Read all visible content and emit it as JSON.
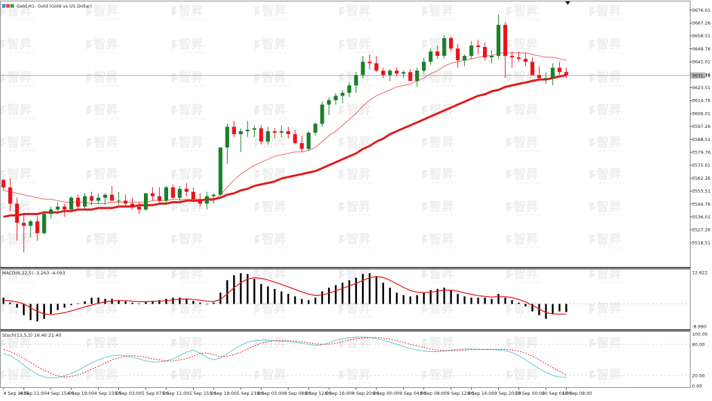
{
  "window": {
    "title": "Gold,H1: Gold (Gold vs US Dollar)"
  },
  "watermark": {
    "brand": "智昇",
    "sub": "ZHISHENG"
  },
  "colors": {
    "bull": "#1a7f2a",
    "bear": "#e8141c",
    "ma_fast": "#f06060",
    "ma_slow": "#e31818",
    "macd_signal": "#e31818",
    "stoch_main": "#5fc8d4",
    "stoch_signal": "#e8141c",
    "price_line": "#a0a0a0"
  },
  "chart_data": [
    {
      "type": "candlestick",
      "symbol": "Gold",
      "timeframe": "H1",
      "current_price": "3631.71",
      "ylim": [
        3505,
        3680
      ],
      "y_ticks": [
        "3676.01",
        "3667.26",
        "3658.51",
        "3649.76",
        "3641.01",
        "3632.26",
        "3623.51",
        "3614.76",
        "3606.01",
        "3597.26",
        "3588.51",
        "3579.76",
        "3571.01",
        "3562.26",
        "3553.51",
        "3544.76",
        "3536.01",
        "3527.26",
        "3518.51"
      ],
      "x_ticks": [
        "4 Sep 2025",
        "4 Sep 11:00",
        "4 Sep 15:00",
        "4 Sep 19:00",
        "4 Sep 23:00",
        "5 Sep 03:00",
        "5 Sep 07:00",
        "5 Sep 11:00",
        "5 Sep 15:00",
        "5 Sep 19:00",
        "5 Sep 23:00",
        "8 Sep 03:00",
        "8 Sep 08:00",
        "8 Sep 12:00",
        "8 Sep 16:00",
        "8 Sep 20:00",
        "9 Sep 00:00",
        "9 Sep 04:00",
        "9 Sep 08:00",
        "9 Sep 12:00",
        "9 Sep 16:00",
        "9 Sep 20:00",
        "10 Sep 00:00",
        "10 Sep 04:00",
        "10 Sep 08:00"
      ],
      "candles": [
        [
          3561,
          3562,
          3554,
          3556
        ],
        [
          3556,
          3562,
          3540,
          3545
        ],
        [
          3545,
          3549,
          3520,
          3532
        ],
        [
          3532,
          3538,
          3512,
          3530
        ],
        [
          3530,
          3534,
          3522,
          3533
        ],
        [
          3533,
          3537,
          3520,
          3525
        ],
        [
          3525,
          3540,
          3524,
          3538
        ],
        [
          3538,
          3543,
          3535,
          3541
        ],
        [
          3541,
          3546,
          3538,
          3543
        ],
        [
          3543,
          3545,
          3536,
          3541
        ],
        [
          3541,
          3550,
          3539,
          3549
        ],
        [
          3549,
          3551,
          3541,
          3543
        ],
        [
          3543,
          3552,
          3541,
          3550
        ],
        [
          3550,
          3553,
          3544,
          3547
        ],
        [
          3547,
          3552,
          3545,
          3549
        ],
        [
          3549,
          3552,
          3544,
          3551
        ],
        [
          3551,
          3557,
          3547,
          3547
        ],
        [
          3547,
          3553,
          3544,
          3547
        ],
        [
          3547,
          3551,
          3543,
          3545
        ],
        [
          3545,
          3549,
          3541,
          3543
        ],
        [
          3543,
          3546,
          3538,
          3541
        ],
        [
          3541,
          3552,
          3540,
          3552
        ],
        [
          3552,
          3556,
          3547,
          3550
        ],
        [
          3550,
          3556,
          3546,
          3547
        ],
        [
          3547,
          3557,
          3545,
          3556
        ],
        [
          3556,
          3558,
          3548,
          3549
        ],
        [
          3549,
          3557,
          3547,
          3555
        ],
        [
          3555,
          3559,
          3550,
          3553
        ],
        [
          3553,
          3556,
          3546,
          3548
        ],
        [
          3548,
          3552,
          3543,
          3545
        ],
        [
          3545,
          3553,
          3541,
          3550
        ],
        [
          3550,
          3552,
          3545,
          3551
        ],
        [
          3551,
          3583,
          3550,
          3583
        ],
        [
          3583,
          3599,
          3572,
          3597
        ],
        [
          3597,
          3601,
          3590,
          3592
        ],
        [
          3592,
          3596,
          3580,
          3594
        ],
        [
          3594,
          3601,
          3590,
          3595
        ],
        [
          3595,
          3598,
          3590,
          3596
        ],
        [
          3596,
          3598,
          3585,
          3587
        ],
        [
          3587,
          3597,
          3585,
          3594
        ],
        [
          3594,
          3596,
          3589,
          3593
        ],
        [
          3593,
          3598,
          3590,
          3594
        ],
        [
          3594,
          3597,
          3589,
          3592
        ],
        [
          3592,
          3595,
          3585,
          3586
        ],
        [
          3586,
          3591,
          3580,
          3582
        ],
        [
          3582,
          3594,
          3581,
          3593
        ],
        [
          3593,
          3600,
          3591,
          3599
        ],
        [
          3599,
          3614,
          3597,
          3612
        ],
        [
          3612,
          3617,
          3605,
          3615
        ],
        [
          3615,
          3620,
          3612,
          3618
        ],
        [
          3618,
          3622,
          3613,
          3620
        ],
        [
          3620,
          3627,
          3617,
          3625
        ],
        [
          3625,
          3634,
          3620,
          3632
        ],
        [
          3632,
          3645,
          3630,
          3641
        ],
        [
          3641,
          3646,
          3636,
          3640
        ],
        [
          3640,
          3645,
          3634,
          3635
        ],
        [
          3635,
          3637,
          3630,
          3632
        ],
        [
          3632,
          3636,
          3628,
          3635
        ],
        [
          3635,
          3637,
          3631,
          3633
        ],
        [
          3633,
          3635,
          3630,
          3634
        ],
        [
          3634,
          3636,
          3628,
          3628
        ],
        [
          3628,
          3637,
          3624,
          3635
        ],
        [
          3635,
          3644,
          3633,
          3641
        ],
        [
          3641,
          3650,
          3639,
          3648
        ],
        [
          3648,
          3652,
          3643,
          3645
        ],
        [
          3645,
          3659,
          3643,
          3657
        ],
        [
          3657,
          3658,
          3648,
          3650
        ],
        [
          3650,
          3653,
          3637,
          3642
        ],
        [
          3642,
          3646,
          3638,
          3645
        ],
        [
          3645,
          3655,
          3643,
          3652
        ],
        [
          3652,
          3656,
          3646,
          3651
        ],
        [
          3651,
          3654,
          3642,
          3644
        ],
        [
          3644,
          3649,
          3640,
          3645
        ],
        [
          3645,
          3673,
          3643,
          3666
        ],
        [
          3666,
          3668,
          3630,
          3645
        ],
        [
          3645,
          3648,
          3637,
          3644
        ],
        [
          3644,
          3648,
          3641,
          3643
        ],
        [
          3643,
          3647,
          3638,
          3641
        ],
        [
          3641,
          3644,
          3632,
          3632
        ],
        [
          3632,
          3638,
          3628,
          3630
        ],
        [
          3630,
          3634,
          3626,
          3630
        ],
        [
          3630,
          3640,
          3625,
          3637
        ],
        [
          3637,
          3641,
          3632,
          3634
        ],
        [
          3634,
          3637,
          3630,
          3632
        ]
      ],
      "ma_fast": [
        3554,
        3553,
        3552,
        3551,
        3550,
        3549,
        3548,
        3548,
        3547,
        3546,
        3546,
        3546,
        3546,
        3545,
        3545,
        3545,
        3546,
        3546,
        3546,
        3546,
        3546,
        3546,
        3547,
        3547,
        3547,
        3548,
        3548,
        3548,
        3548,
        3548,
        3547,
        3547,
        3551,
        3556,
        3561,
        3565,
        3568,
        3571,
        3573,
        3575,
        3577,
        3578,
        3579,
        3580,
        3580,
        3581,
        3583,
        3587,
        3591,
        3594,
        3598,
        3602,
        3606,
        3611,
        3615,
        3618,
        3620,
        3622,
        3624,
        3625,
        3626,
        3628,
        3630,
        3633,
        3635,
        3638,
        3640,
        3641,
        3642,
        3643,
        3644,
        3645,
        3645,
        3647,
        3647,
        3647,
        3647,
        3647,
        3646,
        3645,
        3644,
        3644,
        3643,
        3642
      ],
      "ma_slow": [
        3536,
        3537,
        3537,
        3538,
        3538,
        3538,
        3539,
        3539,
        3539,
        3540,
        3540,
        3541,
        3541,
        3541,
        3542,
        3542,
        3542,
        3543,
        3543,
        3543,
        3544,
        3544,
        3544,
        3545,
        3545,
        3546,
        3546,
        3547,
        3547,
        3547,
        3548,
        3548,
        3549,
        3551,
        3552,
        3554,
        3555,
        3557,
        3558,
        3559,
        3560,
        3562,
        3563,
        3564,
        3565,
        3566,
        3567,
        3569,
        3571,
        3573,
        3575,
        3577,
        3579,
        3582,
        3584,
        3587,
        3589,
        3592,
        3594,
        3596,
        3598,
        3600,
        3602,
        3604,
        3606,
        3608,
        3610,
        3612,
        3614,
        3616,
        3618,
        3619,
        3621,
        3622,
        3624,
        3625,
        3626,
        3627,
        3628,
        3629,
        3629,
        3630,
        3631,
        3632
      ],
      "price_line": 3631.71
    },
    {
      "type": "bar",
      "indicator": "MACD",
      "label": "MACD(6,12,5) -3.263 -4.093",
      "ylim": [
        -8.99,
        12.622
      ],
      "y_ticks": [
        "12.622",
        "-8.990"
      ],
      "values": [
        2.5,
        0.5,
        -1.5,
        -4.5,
        -6.5,
        -7.0,
        -6.0,
        -4.0,
        -2.5,
        -1.5,
        -0.5,
        0.2,
        1.0,
        2.5,
        2.5,
        2.0,
        2.0,
        1.5,
        1.0,
        0.5,
        0.2,
        0.8,
        1.2,
        1.5,
        2.0,
        2.5,
        2.5,
        2.0,
        1.2,
        0.5,
        0.0,
        0.5,
        4.5,
        9.5,
        11.5,
        12.3,
        12.0,
        10.0,
        8.0,
        7.0,
        6.0,
        5.0,
        4.0,
        3.0,
        2.0,
        1.5,
        2.5,
        5.0,
        6.5,
        7.5,
        8.5,
        9.5,
        10.5,
        12.0,
        12.3,
        11.0,
        8.5,
        6.5,
        4.5,
        3.5,
        3.0,
        3.5,
        4.5,
        5.5,
        6.0,
        6.5,
        5.5,
        4.0,
        3.0,
        2.5,
        2.5,
        2.5,
        2.0,
        4.0,
        2.5,
        1.5,
        0.5,
        -1.0,
        -3.0,
        -4.5,
        -6.0,
        -4.0,
        -3.0,
        -3.3
      ],
      "signal": [
        1.5,
        1.2,
        0.8,
        0.0,
        -1.5,
        -3.0,
        -4.0,
        -4.3,
        -4.0,
        -3.5,
        -2.8,
        -2.0,
        -1.2,
        -0.5,
        0.3,
        0.8,
        1.2,
        1.4,
        1.3,
        1.1,
        0.9,
        0.9,
        1.0,
        1.1,
        1.3,
        1.6,
        1.9,
        2.0,
        1.8,
        1.5,
        1.1,
        0.9,
        1.8,
        4.0,
        6.5,
        8.5,
        10.0,
        10.5,
        10.2,
        9.6,
        8.7,
        7.8,
        6.8,
        5.8,
        4.8,
        3.9,
        3.4,
        3.6,
        4.3,
        5.2,
        6.2,
        7.2,
        8.2,
        9.4,
        10.5,
        11.0,
        10.6,
        9.5,
        8.0,
        6.6,
        5.4,
        4.7,
        4.5,
        4.7,
        5.1,
        5.5,
        5.5,
        5.1,
        4.4,
        3.8,
        3.3,
        3.0,
        2.7,
        3.0,
        2.9,
        2.5,
        1.8,
        0.8,
        -0.6,
        -2.0,
        -3.5,
        -4.0,
        -4.1,
        -4.1
      ]
    },
    {
      "type": "line",
      "indicator": "Stochastic",
      "label": "Stoch(13,5,3) 16.40 21.40",
      "ylim": [
        0,
        100
      ],
      "y_ticks": [
        "100.00",
        "80.00",
        "20.00",
        "0.00"
      ],
      "levels": [
        80,
        20
      ],
      "main": [
        62,
        58,
        50,
        40,
        30,
        22,
        17,
        15,
        16,
        19,
        24,
        30,
        37,
        44,
        50,
        55,
        58,
        59,
        58,
        55,
        52,
        48,
        46,
        46,
        48,
        52,
        58,
        65,
        69,
        63,
        55,
        50,
        54,
        62,
        70,
        78,
        84,
        87,
        88,
        88,
        87,
        86,
        85,
        84,
        82,
        80,
        78,
        79,
        83,
        88,
        91,
        93,
        94,
        94,
        93,
        91,
        88,
        84,
        80,
        76,
        72,
        69,
        67,
        66,
        66,
        67,
        69,
        70,
        71,
        71,
        70,
        70,
        70,
        69,
        68,
        64,
        58,
        50,
        42,
        33,
        26,
        20,
        17,
        16
      ],
      "signal": [
        70,
        66,
        60,
        53,
        45,
        37,
        30,
        24,
        19,
        17,
        18,
        21,
        26,
        32,
        38,
        44,
        50,
        54,
        57,
        58,
        57,
        55,
        52,
        50,
        48,
        48,
        50,
        53,
        57,
        62,
        63,
        60,
        56,
        57,
        60,
        65,
        71,
        77,
        82,
        85,
        87,
        87,
        87,
        86,
        85,
        83,
        81,
        80,
        80,
        82,
        85,
        88,
        91,
        92,
        93,
        93,
        92,
        90,
        87,
        84,
        80,
        77,
        74,
        71,
        69,
        68,
        68,
        68,
        69,
        70,
        70,
        70,
        70,
        70,
        70,
        69,
        67,
        63,
        57,
        50,
        42,
        35,
        28,
        21
      ]
    }
  ]
}
